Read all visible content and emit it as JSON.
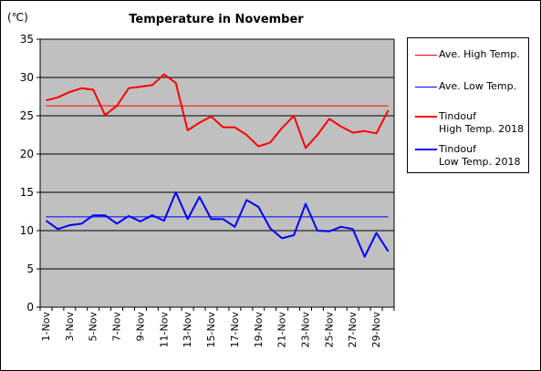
{
  "chart_data": {
    "type": "line",
    "title": "Temperature in November",
    "unit_label": "(℃)",
    "ylim": [
      0,
      35
    ],
    "yticks": [
      0,
      5,
      10,
      15,
      20,
      25,
      30,
      35
    ],
    "grid": true,
    "legend_placement": "right",
    "categories": [
      "1-Nov",
      "2-Nov",
      "3-Nov",
      "4-Nov",
      "5-Nov",
      "6-Nov",
      "7-Nov",
      "8-Nov",
      "9-Nov",
      "10-Nov",
      "11-Nov",
      "12-Nov",
      "13-Nov",
      "14-Nov",
      "15-Nov",
      "16-Nov",
      "17-Nov",
      "18-Nov",
      "19-Nov",
      "20-Nov",
      "21-Nov",
      "22-Nov",
      "23-Nov",
      "24-Nov",
      "25-Nov",
      "26-Nov",
      "27-Nov",
      "28-Nov",
      "29-Nov",
      "30-Nov"
    ],
    "xtick_labels": [
      "1-Nov",
      "3-Nov",
      "5-Nov",
      "7-Nov",
      "9-Nov",
      "11-Nov",
      "13-Nov",
      "15-Nov",
      "17-Nov",
      "19-Nov",
      "21-Nov",
      "23-Nov",
      "25-Nov",
      "27-Nov",
      "29-Nov"
    ],
    "series": [
      {
        "name": "Ave. High Temp.",
        "color": "#ff0000",
        "width": 1,
        "values": [
          26.3,
          26.3,
          26.3,
          26.3,
          26.3,
          26.3,
          26.3,
          26.3,
          26.3,
          26.3,
          26.3,
          26.3,
          26.3,
          26.3,
          26.3,
          26.3,
          26.3,
          26.3,
          26.3,
          26.3,
          26.3,
          26.3,
          26.3,
          26.3,
          26.3,
          26.3,
          26.3,
          26.3,
          26.3,
          26.3
        ]
      },
      {
        "name": "Ave. Low Temp.",
        "color": "#0000ff",
        "width": 1,
        "values": [
          11.8,
          11.8,
          11.8,
          11.8,
          11.8,
          11.8,
          11.8,
          11.8,
          11.8,
          11.8,
          11.8,
          11.8,
          11.8,
          11.8,
          11.8,
          11.8,
          11.8,
          11.8,
          11.8,
          11.8,
          11.8,
          11.8,
          11.8,
          11.8,
          11.8,
          11.8,
          11.8,
          11.8,
          11.8,
          11.8
        ]
      },
      {
        "name": "Tindouf\nHigh Temp. 2018",
        "line1": "Tindouf",
        "line2": "High Temp. 2018",
        "color": "#ff0000",
        "width": 2,
        "values": [
          27.0,
          27.4,
          28.1,
          28.6,
          28.4,
          25.1,
          26.3,
          28.6,
          28.8,
          29.0,
          30.4,
          29.3,
          23.1,
          24.1,
          24.9,
          23.5,
          23.5,
          22.5,
          21.0,
          21.5,
          23.4,
          25.0,
          20.8,
          22.5,
          24.6,
          23.6,
          22.8,
          23.0,
          22.7,
          25.7
        ]
      },
      {
        "name": "Tindouf\nLow Temp. 2018",
        "line1": "Tindouf",
        "line2": "Low Temp. 2018",
        "color": "#0000ff",
        "width": 2,
        "values": [
          11.3,
          10.2,
          10.7,
          10.9,
          12.0,
          12.0,
          10.9,
          11.9,
          11.2,
          12.0,
          11.3,
          15.0,
          11.5,
          14.4,
          11.5,
          11.5,
          10.5,
          14.0,
          13.1,
          10.3,
          9.0,
          9.4,
          13.5,
          10.0,
          9.9,
          10.5,
          10.2,
          6.6,
          9.7,
          7.3
        ]
      }
    ]
  }
}
